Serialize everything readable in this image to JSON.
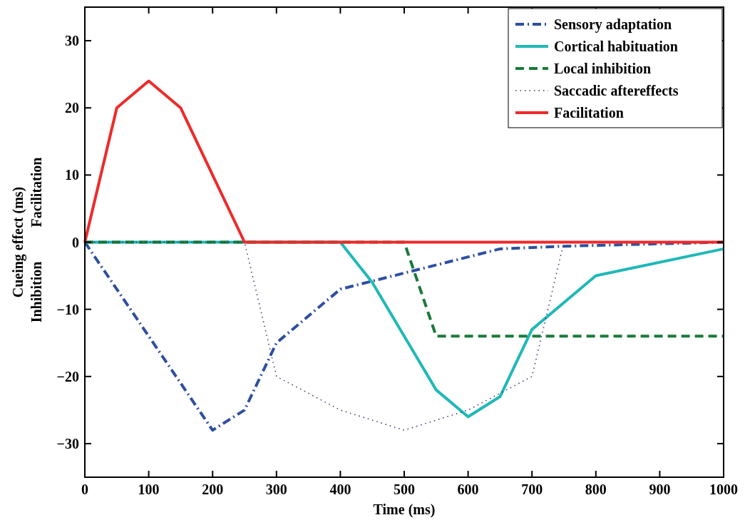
{
  "chart_data": {
    "type": "line",
    "xlabel": "Time (ms)",
    "ylabel": "Cueing effect (ms)",
    "annotations": [
      "Facilitation",
      "Inhibition"
    ],
    "xlim": [
      0,
      1000
    ],
    "ylim": [
      -35,
      35
    ],
    "xticks": [
      0,
      100,
      200,
      300,
      400,
      500,
      600,
      700,
      800,
      900,
      1000
    ],
    "yticks": [
      -30,
      -20,
      -10,
      0,
      10,
      20,
      30
    ],
    "grid": false,
    "legend": "top right",
    "series": [
      {
        "name": "Sensory adaptation",
        "color": "#2e4fa0",
        "line_style": "dashdot",
        "x": [
          0,
          200,
          250,
          300,
          400,
          450,
          650,
          750,
          1000
        ],
        "values": [
          0,
          -28,
          -25,
          -15,
          -7,
          -5.8,
          -1,
          -0.6,
          0
        ]
      },
      {
        "name": "Cortical habituation",
        "color": "#20b8b8",
        "line_style": "solid",
        "x": [
          0,
          400,
          450,
          550,
          600,
          650,
          700,
          800,
          1000
        ],
        "values": [
          0,
          0,
          -6,
          -22,
          -26,
          -23,
          -13,
          -5,
          -1
        ]
      },
      {
        "name": "Local inhibition",
        "color": "#1a7a3a",
        "line_style": "dashed",
        "x": [
          0,
          500,
          550,
          1000
        ],
        "values": [
          0,
          0,
          -14,
          -14
        ]
      },
      {
        "name": "Saccadic aftereffects",
        "color": "#303070",
        "line_style": "dotted",
        "x": [
          0,
          250,
          300,
          400,
          500,
          600,
          700,
          750,
          1000
        ],
        "values": [
          0,
          0,
          -20,
          -25,
          -28,
          -25,
          -20,
          0,
          0
        ]
      },
      {
        "name": "Facilitation",
        "color": "#ee2a2a",
        "line_style": "solid",
        "x": [
          0,
          50,
          100,
          150,
          250,
          1000
        ],
        "values": [
          0,
          20,
          24,
          20,
          0,
          0
        ]
      }
    ]
  }
}
